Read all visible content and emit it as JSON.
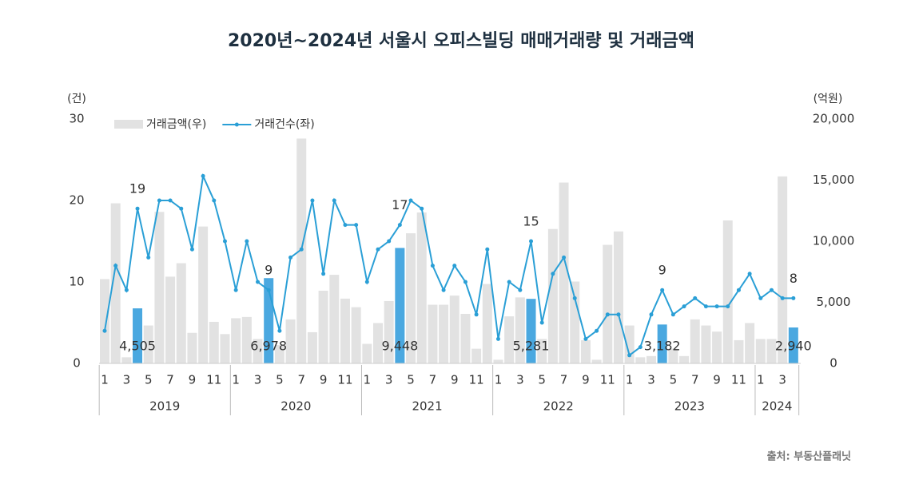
{
  "chart_data": {
    "type": "bar-line",
    "title": "2020년~2024년 서울시 오피스빌딩 매매거래량 및 거래금액",
    "y_label": "(건)",
    "y2_label": "(억원)",
    "source": "출처: 부동산플래닛",
    "categories": [
      "1",
      null,
      "3",
      null,
      "5",
      null,
      "7",
      null,
      "9",
      null,
      "11",
      null,
      "1",
      null,
      "3",
      null,
      "5",
      null,
      "7",
      null,
      "9",
      null,
      "11",
      null,
      "1",
      null,
      "3",
      null,
      "5",
      null,
      "7",
      null,
      "9",
      null,
      "11",
      null,
      "1",
      null,
      "3",
      null,
      "5",
      null,
      "7",
      null,
      "9",
      null,
      "11",
      null,
      "1",
      null,
      "3",
      null,
      "5",
      null,
      "7",
      null,
      "9",
      null,
      "11",
      null,
      "1",
      null,
      "3",
      null
    ],
    "years": [
      "2019",
      "2020",
      "2021",
      "2022",
      "2023",
      "2024"
    ],
    "ylim": [
      0,
      30
    ],
    "yticks": [
      0,
      10,
      20,
      30
    ],
    "y2lim": [
      0,
      20000
    ],
    "y2ticks": [
      0,
      {
        "value": 5000,
        "label": "5,000"
      },
      {
        "value": 10000,
        "label": "10,000"
      },
      {
        "value": 15000,
        "label": "15,000"
      },
      {
        "value": 20000,
        "label": "20,000"
      }
    ],
    "series": [
      {
        "name": "거래금액(우)",
        "type": "bar",
        "axis": "y2",
        "color": "#e2e2e2",
        "highlight_color": "#4aa8e0",
        "values": [
          6900,
          13100,
          500,
          4505,
          3100,
          12400,
          7100,
          8200,
          2500,
          11200,
          3400,
          2400,
          3700,
          3800,
          2000,
          6978,
          1500,
          3600,
          18400,
          2550,
          5950,
          7250,
          5300,
          4600,
          1600,
          3300,
          5100,
          9448,
          10650,
          12350,
          4800,
          4800,
          5550,
          4050,
          1200,
          6500,
          300,
          3850,
          5400,
          5281,
          2000,
          11000,
          14800,
          6700,
          1900,
          300,
          9700,
          10800,
          3100,
          500,
          600,
          3182,
          1200,
          600,
          3600,
          3100,
          2600,
          11700,
          1900,
          3300,
          2000,
          2000,
          15300,
          2940
        ],
        "value_labels": [
          null,
          null,
          null,
          "4,505",
          null,
          null,
          null,
          null,
          null,
          null,
          null,
          null,
          null,
          null,
          null,
          "6,978",
          null,
          null,
          null,
          null,
          null,
          null,
          null,
          null,
          null,
          null,
          null,
          "9,448",
          null,
          null,
          null,
          null,
          null,
          null,
          null,
          null,
          null,
          null,
          null,
          "5,281",
          null,
          null,
          null,
          null,
          null,
          null,
          null,
          null,
          null,
          null,
          null,
          "3,182",
          null,
          null,
          null,
          null,
          null,
          null,
          null,
          null,
          null,
          null,
          null,
          "2,940"
        ]
      },
      {
        "name": "거래건수(좌)",
        "type": "line",
        "axis": "y",
        "color": "#2a9fd6",
        "values": [
          4,
          12,
          9,
          19,
          13,
          20,
          20,
          19,
          14,
          23,
          20,
          15,
          9,
          15,
          10,
          9,
          4,
          13,
          14,
          20,
          11,
          20,
          17,
          17,
          10,
          14,
          15,
          17,
          20,
          19,
          12,
          9,
          12,
          10,
          6,
          14,
          3,
          10,
          9,
          15,
          5,
          11,
          13,
          8,
          3,
          4,
          6,
          6,
          1,
          2,
          6,
          9,
          6,
          7,
          8,
          7,
          7,
          7,
          9,
          11,
          8,
          9,
          8,
          8
        ],
        "value_labels": [
          null,
          null,
          null,
          "19",
          null,
          null,
          null,
          null,
          null,
          null,
          null,
          null,
          null,
          null,
          null,
          "9",
          null,
          null,
          null,
          null,
          null,
          null,
          null,
          null,
          null,
          null,
          null,
          "17",
          null,
          null,
          null,
          null,
          null,
          null,
          null,
          null,
          null,
          null,
          null,
          "15",
          null,
          null,
          null,
          null,
          null,
          null,
          null,
          null,
          null,
          null,
          null,
          "9",
          null,
          null,
          null,
          null,
          null,
          null,
          null,
          null,
          null,
          null,
          null,
          "8"
        ]
      }
    ]
  }
}
